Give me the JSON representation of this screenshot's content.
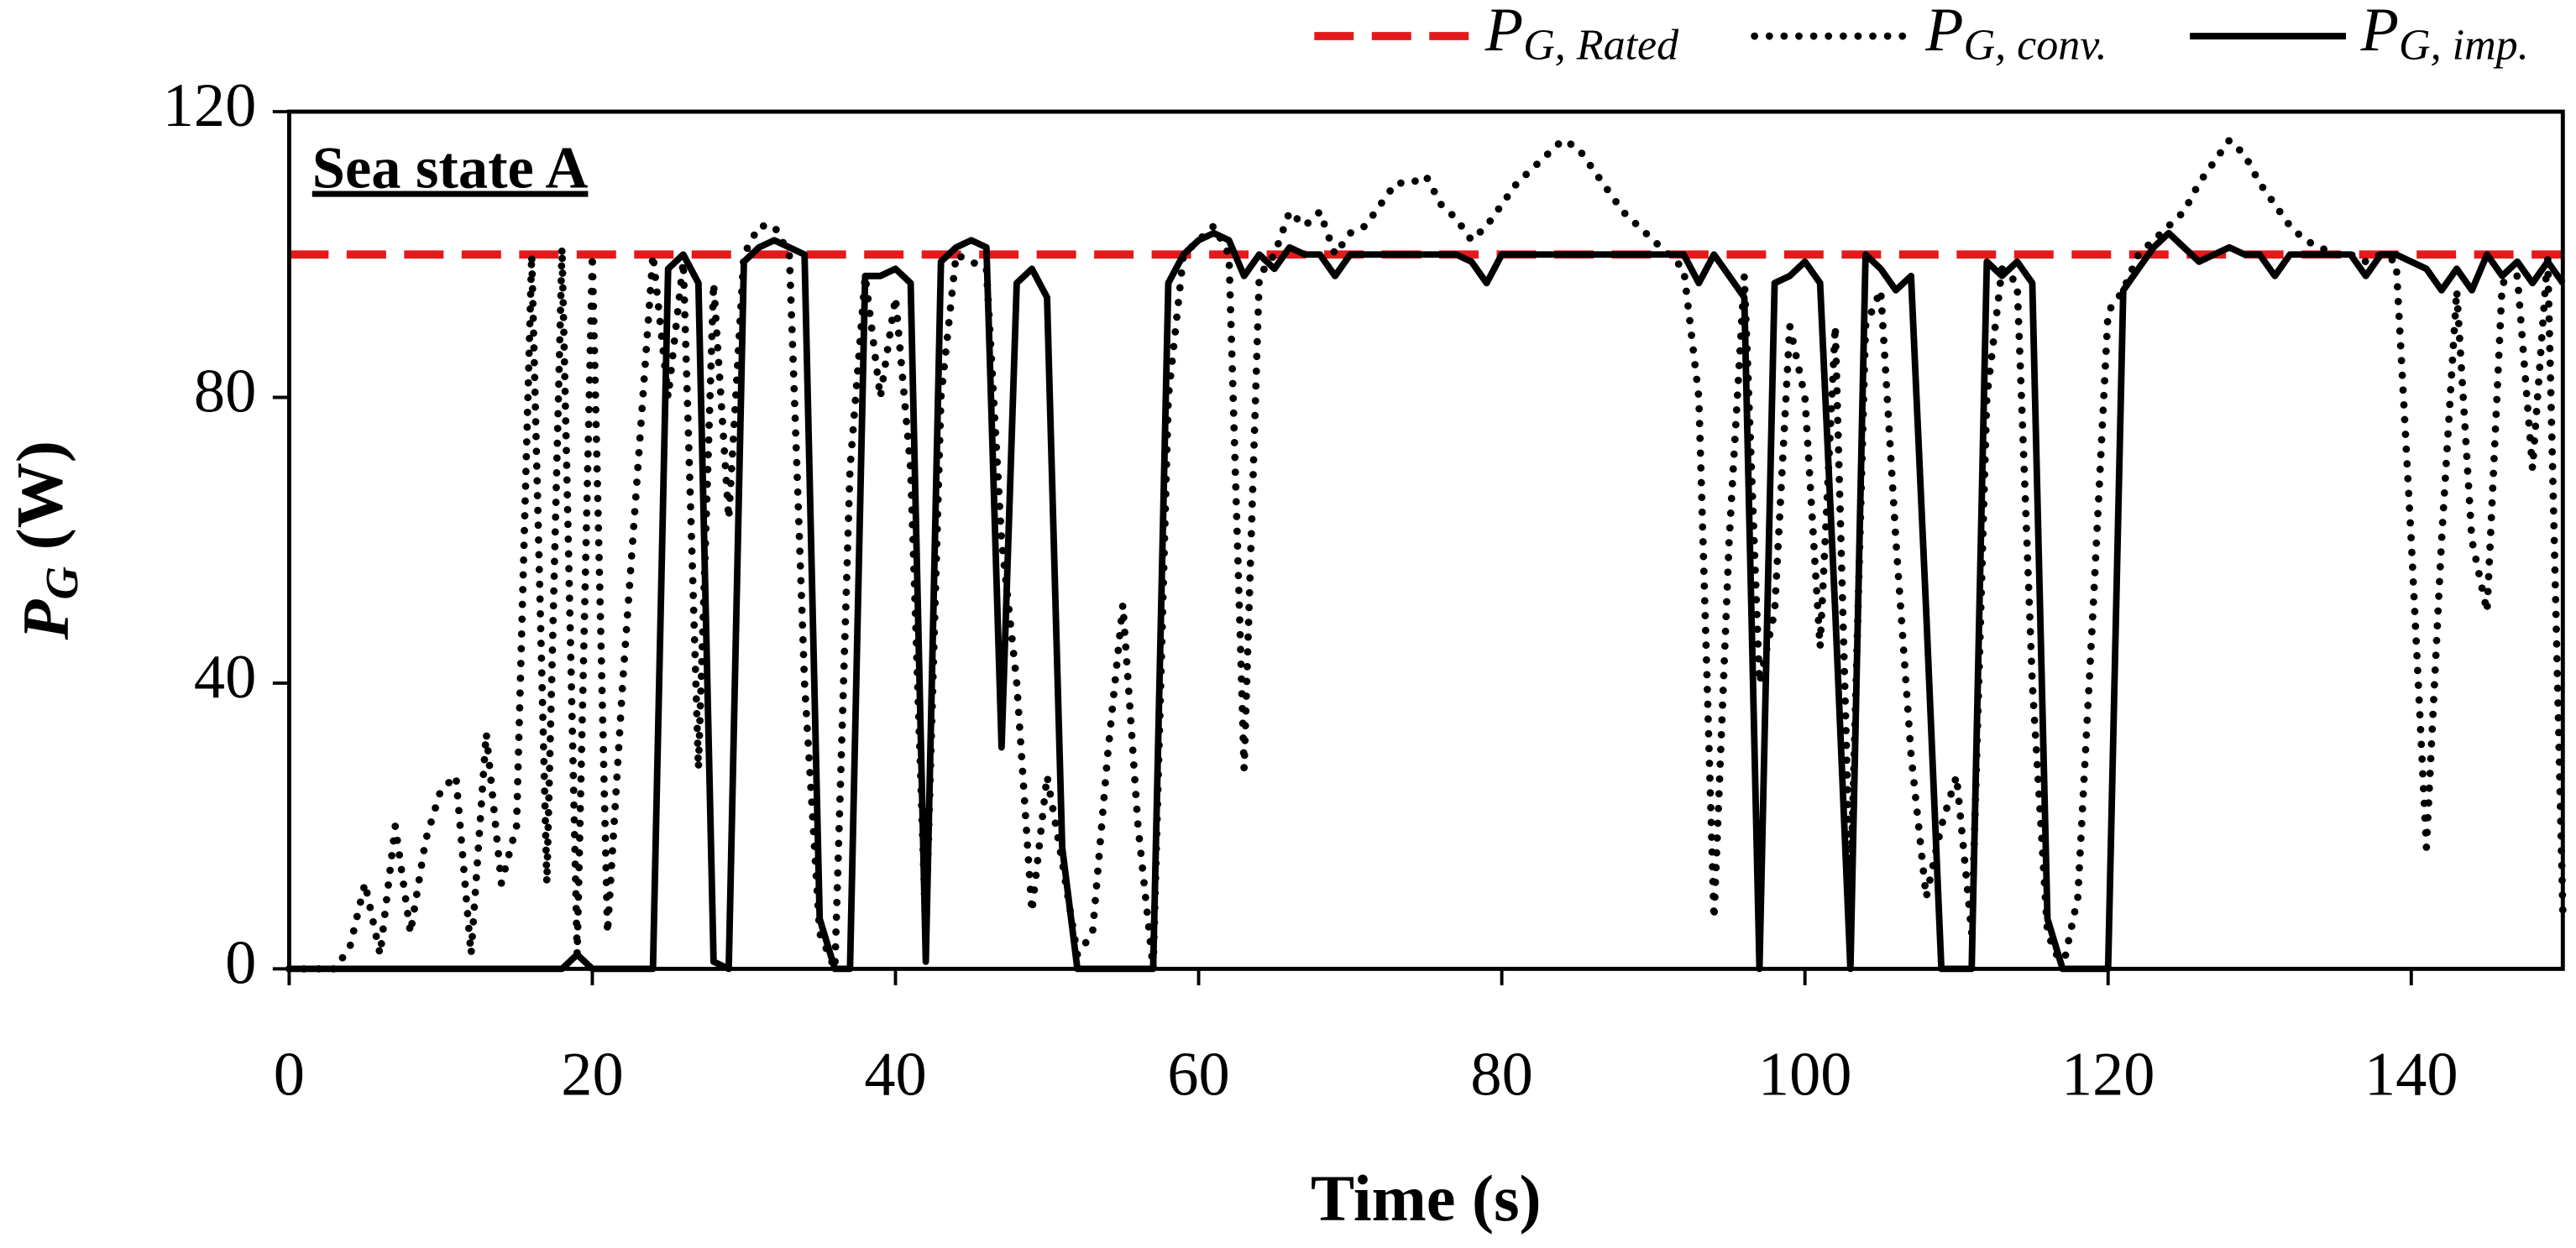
{
  "chart_data": {
    "type": "line",
    "annotation": "Sea state A",
    "xlabel": "Time (s)",
    "ylabel": "PG (W)",
    "xlim": [
      0,
      150
    ],
    "ylim": [
      0,
      120
    ],
    "xticks": [
      0,
      20,
      40,
      60,
      80,
      100,
      120,
      140
    ],
    "yticks": [
      0,
      40,
      80,
      120
    ],
    "legend": "top",
    "x": [
      0,
      1,
      2,
      3,
      4,
      5,
      6,
      7,
      8,
      9,
      10,
      11,
      12,
      13,
      14,
      15,
      16,
      17,
      18,
      19,
      20,
      21,
      22,
      23,
      24,
      25,
      26,
      27,
      28,
      29,
      30,
      31,
      32,
      33,
      34,
      35,
      36,
      37,
      38,
      39,
      40,
      41,
      42,
      43,
      44,
      45,
      46,
      47,
      48,
      49,
      50,
      51,
      52,
      53,
      54,
      55,
      56,
      57,
      58,
      59,
      60,
      61,
      62,
      63,
      64,
      65,
      66,
      67,
      68,
      69,
      70,
      71,
      72,
      73,
      74,
      75,
      76,
      77,
      78,
      79,
      80,
      81,
      82,
      83,
      84,
      85,
      86,
      87,
      88,
      89,
      90,
      91,
      92,
      93,
      94,
      95,
      96,
      97,
      98,
      99,
      100,
      101,
      102,
      103,
      104,
      105,
      106,
      107,
      108,
      109,
      110,
      111,
      112,
      113,
      114,
      115,
      116,
      117,
      118,
      119,
      120,
      121,
      122,
      123,
      124,
      125,
      126,
      127,
      128,
      129,
      130,
      131,
      132,
      133,
      134,
      135,
      136,
      137,
      138,
      139,
      140,
      141,
      142,
      143,
      144,
      145,
      146,
      147,
      148,
      149,
      150
    ],
    "series": [
      {
        "name": "PG, Rated",
        "color": "#e31a1c",
        "style": "dashed",
        "values": [
          100,
          100,
          100,
          100,
          100,
          100,
          100,
          100,
          100,
          100,
          100,
          100,
          100,
          100,
          100,
          100,
          100,
          100,
          100,
          100,
          100,
          100,
          100,
          100,
          100,
          100,
          100,
          100,
          100,
          100,
          100,
          100,
          100,
          100,
          100,
          100,
          100,
          100,
          100,
          100,
          100,
          100,
          100,
          100,
          100,
          100,
          100,
          100,
          100,
          100,
          100,
          100,
          100,
          100,
          100,
          100,
          100,
          100,
          100,
          100,
          100,
          100,
          100,
          100,
          100,
          100,
          100,
          100,
          100,
          100,
          100,
          100,
          100,
          100,
          100,
          100,
          100,
          100,
          100,
          100,
          100,
          100,
          100,
          100,
          100,
          100,
          100,
          100,
          100,
          100,
          100,
          100,
          100,
          100,
          100,
          100,
          100,
          100,
          100,
          100,
          100,
          100,
          100,
          100,
          100,
          100,
          100,
          100,
          100,
          100,
          100,
          100,
          100,
          100,
          100,
          100,
          100,
          100,
          100,
          100,
          100,
          100,
          100,
          100,
          100,
          100,
          100,
          100,
          100,
          100,
          100,
          100,
          100,
          100,
          100,
          100,
          100,
          100,
          100,
          100,
          100,
          100,
          100,
          100,
          100,
          100,
          100,
          100,
          100,
          100,
          100
        ]
      },
      {
        "name": "PG, conv.",
        "color": "#000000",
        "style": "dotted",
        "values": [
          0,
          0,
          0,
          0,
          3,
          12,
          2,
          20,
          5,
          18,
          25,
          27,
          2,
          33,
          12,
          20,
          100,
          12,
          101,
          2,
          100,
          5,
          40,
          70,
          100,
          80,
          99,
          28,
          96,
          63,
          100,
          104,
          104,
          100,
          40,
          5,
          0,
          70,
          97,
          80,
          94,
          70,
          5,
          80,
          100,
          99,
          98,
          60,
          40,
          8,
          27,
          15,
          2,
          5,
          30,
          51,
          20,
          0,
          80,
          100,
          102,
          104,
          100,
          28,
          97,
          100,
          106,
          104,
          106,
          100,
          103,
          104,
          107,
          110,
          110,
          111,
          107,
          105,
          102,
          104,
          107,
          110,
          112,
          114,
          116,
          115,
          112,
          109,
          106,
          104,
          102,
          100,
          98,
          80,
          7,
          60,
          97,
          40,
          50,
          90,
          80,
          45,
          90,
          10,
          90,
          95,
          60,
          30,
          10,
          20,
          27,
          5,
          80,
          98,
          96,
          40,
          5,
          0,
          10,
          50,
          92,
          95,
          100,
          102,
          104,
          106,
          110,
          113,
          116,
          114,
          110,
          107,
          104,
          102,
          101,
          100,
          100,
          99,
          100,
          99,
          60,
          17,
          60,
          95,
          60,
          50,
          96,
          97,
          70,
          100,
          8
        ]
      },
      {
        "name": "PG, imp.",
        "color": "#000000",
        "style": "solid",
        "values": [
          0,
          0,
          0,
          0,
          0,
          0,
          0,
          0,
          0,
          0,
          0,
          0,
          0,
          0,
          0,
          0,
          0,
          0,
          0,
          2,
          0,
          0,
          0,
          0,
          0,
          98,
          100,
          96,
          1,
          0,
          99,
          101,
          102,
          101,
          100,
          7,
          0,
          0,
          97,
          97,
          98,
          96,
          1,
          99,
          101,
          102,
          101,
          31,
          96,
          98,
          94,
          17,
          0,
          0,
          0,
          0,
          0,
          0,
          96,
          100,
          102,
          103,
          102,
          97,
          100,
          98,
          101,
          100,
          100,
          97,
          100,
          100,
          100,
          100,
          100,
          100,
          100,
          100,
          99,
          96,
          100,
          100,
          100,
          100,
          100,
          100,
          100,
          100,
          100,
          100,
          100,
          100,
          100,
          96,
          100,
          97,
          94,
          0,
          96,
          97,
          99,
          96,
          50,
          0,
          100,
          98,
          95,
          97,
          50,
          0,
          0,
          0,
          99,
          97,
          99,
          96,
          7,
          0,
          0,
          0,
          0,
          95,
          98,
          101,
          103,
          101,
          99,
          100,
          101,
          100,
          100,
          97,
          100,
          100,
          100,
          100,
          100,
          97,
          100,
          100,
          99,
          98,
          95,
          98,
          95,
          100,
          97,
          99,
          96,
          99,
          96
        ]
      }
    ]
  }
}
